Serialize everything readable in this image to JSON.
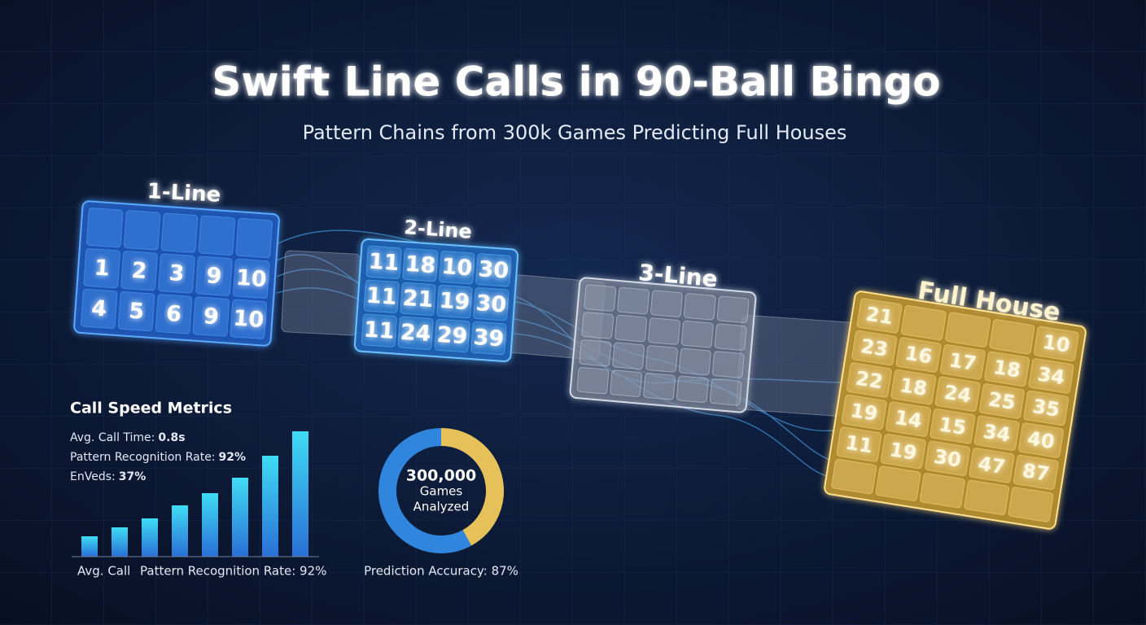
{
  "header": {
    "title": "Swift Line Calls in 90-Ball Bingo",
    "subtitle": "Pattern Chains from 300k Games Predicting Full Houses"
  },
  "stages": [
    {
      "label": "1-Line",
      "rows": [
        [
          1,
          2,
          3,
          9,
          10
        ],
        [
          4,
          5,
          6,
          9,
          10
        ]
      ]
    },
    {
      "label": "2-Line",
      "rows": [
        [
          11,
          18,
          10,
          30
        ],
        [
          11,
          21,
          19,
          30
        ],
        [
          11,
          24,
          29,
          39
        ]
      ]
    },
    {
      "label": "3-Line",
      "rows": []
    },
    {
      "label": "Full House",
      "rows": [
        [
          21,
          null,
          null,
          null,
          10
        ],
        [
          23,
          16,
          17,
          18,
          34
        ],
        [
          22,
          18,
          24,
          25,
          35
        ],
        [
          19,
          14,
          15,
          34,
          40
        ],
        [
          11,
          19,
          30,
          47,
          87
        ]
      ]
    }
  ],
  "metrics": {
    "title": "Call Speed Metrics",
    "lines": [
      {
        "label": "Avg. Call Time:",
        "value": "0.8s"
      },
      {
        "label": "Pattern Recognition Rate:",
        "value": "92%"
      },
      {
        "label": "EnVeds:",
        "value": "37%"
      }
    ],
    "bars": [
      25,
      36,
      47,
      63,
      78,
      97,
      124,
      154
    ],
    "captions": [
      "Avg. Call",
      "Pattern Recognition Rate: 92%"
    ]
  },
  "donut": {
    "center": [
      "300,000",
      "Games",
      "Analyzed"
    ],
    "segments": [
      {
        "value": 42,
        "color": "#e6c15a"
      },
      {
        "value": 58,
        "color": "#2f86dc"
      }
    ],
    "caption": "Prediction Accuracy: 87%"
  }
}
